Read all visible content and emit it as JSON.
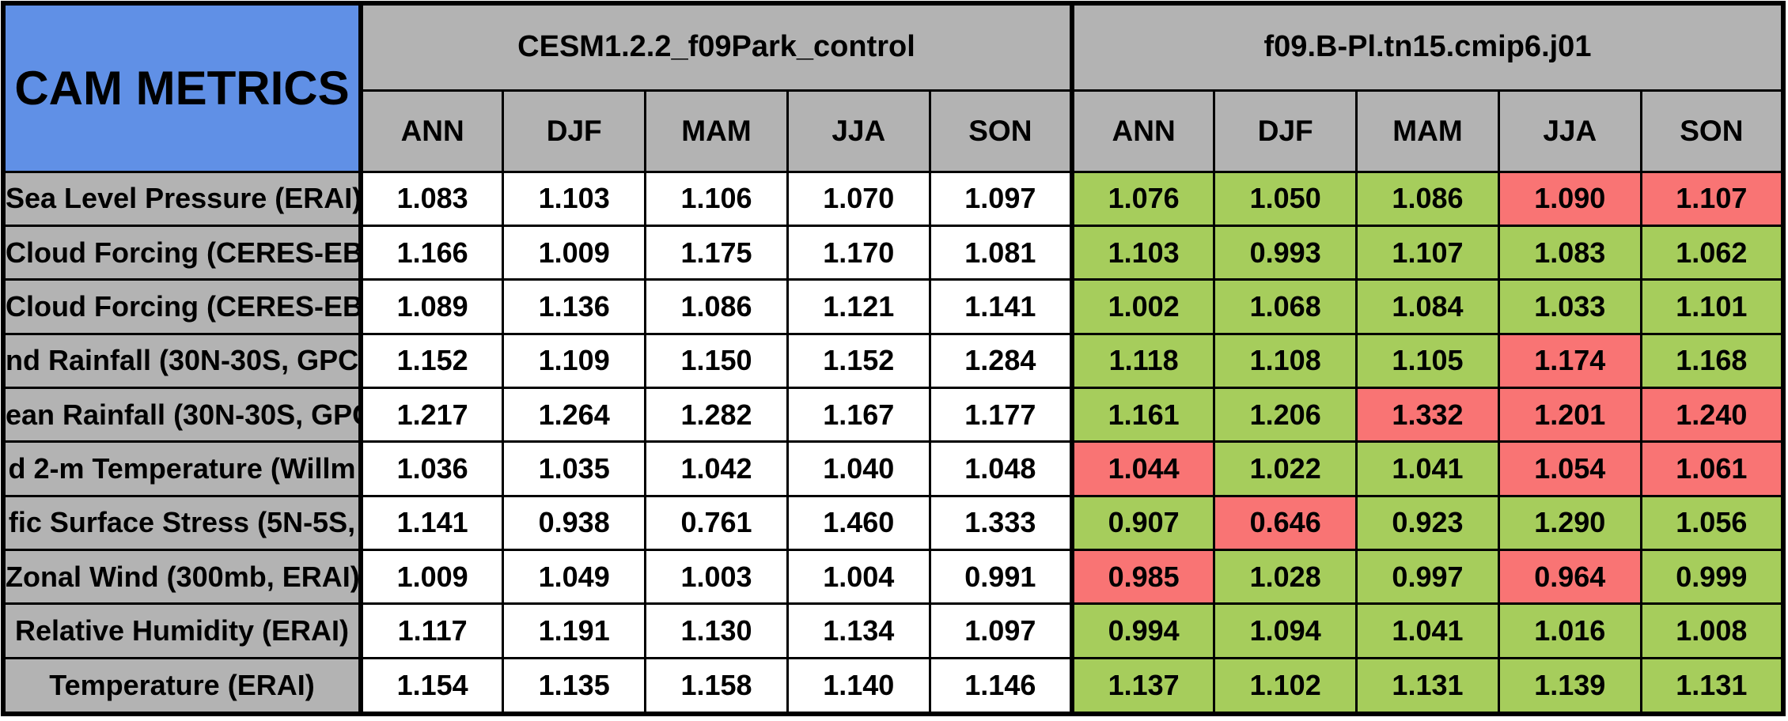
{
  "title": "CAM METRICS",
  "colors": {
    "header_blue": "#6090E6",
    "header_gray": "#B3B3B3",
    "good_green": "#A6CD5C",
    "bad_red": "#F97474",
    "neutral_white": "#FFFFFF",
    "border_black": "#000000"
  },
  "chart_data": {
    "type": "table",
    "title": "CAM METRICS",
    "groups": [
      {
        "name": "CESM1.2.2_f09Park_control"
      },
      {
        "name": "f09.B-Pl.tn15.cmip6.j01"
      }
    ],
    "seasons": [
      "ANN",
      "DJF",
      "MAM",
      "JJA",
      "SON"
    ],
    "legend_note": "experiment cells shaded good_green or bad_red versus control",
    "rows": [
      {
        "label": "Sea Level Pressure (ERAI)",
        "control": [
          "1.083",
          "1.103",
          "1.106",
          "1.070",
          "1.097"
        ],
        "experiment": [
          "1.076",
          "1.050",
          "1.086",
          "1.090",
          "1.107"
        ],
        "flags": [
          "good",
          "good",
          "good",
          "bad",
          "bad"
        ]
      },
      {
        "label": "Cloud Forcing (CERES-EB",
        "control": [
          "1.166",
          "1.009",
          "1.175",
          "1.170",
          "1.081"
        ],
        "experiment": [
          "1.103",
          "0.993",
          "1.107",
          "1.083",
          "1.062"
        ],
        "flags": [
          "good",
          "good",
          "good",
          "good",
          "good"
        ]
      },
      {
        "label": "Cloud Forcing (CERES-EB",
        "control": [
          "1.089",
          "1.136",
          "1.086",
          "1.121",
          "1.141"
        ],
        "experiment": [
          "1.002",
          "1.068",
          "1.084",
          "1.033",
          "1.101"
        ],
        "flags": [
          "good",
          "good",
          "good",
          "good",
          "good"
        ]
      },
      {
        "label": "nd Rainfall (30N-30S, GPC",
        "control": [
          "1.152",
          "1.109",
          "1.150",
          "1.152",
          "1.284"
        ],
        "experiment": [
          "1.118",
          "1.108",
          "1.105",
          "1.174",
          "1.168"
        ],
        "flags": [
          "good",
          "good",
          "good",
          "bad",
          "good"
        ]
      },
      {
        "label": "ean Rainfall (30N-30S, GPC",
        "control": [
          "1.217",
          "1.264",
          "1.282",
          "1.167",
          "1.177"
        ],
        "experiment": [
          "1.161",
          "1.206",
          "1.332",
          "1.201",
          "1.240"
        ],
        "flags": [
          "good",
          "good",
          "bad",
          "bad",
          "bad"
        ]
      },
      {
        "label": "d 2-m Temperature (Willm",
        "control": [
          "1.036",
          "1.035",
          "1.042",
          "1.040",
          "1.048"
        ],
        "experiment": [
          "1.044",
          "1.022",
          "1.041",
          "1.054",
          "1.061"
        ],
        "flags": [
          "bad",
          "good",
          "good",
          "bad",
          "bad"
        ]
      },
      {
        "label": "fic Surface Stress (5N-5S,",
        "control": [
          "1.141",
          "0.938",
          "0.761",
          "1.460",
          "1.333"
        ],
        "experiment": [
          "0.907",
          "0.646",
          "0.923",
          "1.290",
          "1.056"
        ],
        "flags": [
          "good",
          "bad",
          "good",
          "good",
          "good"
        ]
      },
      {
        "label": "Zonal Wind (300mb, ERAI)",
        "control": [
          "1.009",
          "1.049",
          "1.003",
          "1.004",
          "0.991"
        ],
        "experiment": [
          "0.985",
          "1.028",
          "0.997",
          "0.964",
          "0.999"
        ],
        "flags": [
          "bad",
          "good",
          "good",
          "bad",
          "good"
        ]
      },
      {
        "label": "Relative Humidity (ERAI)",
        "control": [
          "1.117",
          "1.191",
          "1.130",
          "1.134",
          "1.097"
        ],
        "experiment": [
          "0.994",
          "1.094",
          "1.041",
          "1.016",
          "1.008"
        ],
        "flags": [
          "good",
          "good",
          "good",
          "good",
          "good"
        ]
      },
      {
        "label": "Temperature (ERAI)",
        "control": [
          "1.154",
          "1.135",
          "1.158",
          "1.140",
          "1.146"
        ],
        "experiment": [
          "1.137",
          "1.102",
          "1.131",
          "1.139",
          "1.131"
        ],
        "flags": [
          "good",
          "good",
          "good",
          "good",
          "good"
        ]
      }
    ]
  }
}
